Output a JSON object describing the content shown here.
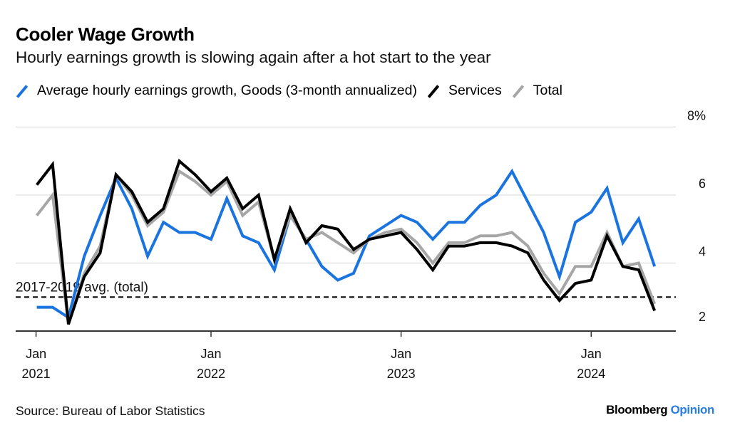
{
  "header": {
    "title": "Cooler Wage Growth",
    "subtitle": "Hourly earnings growth is slowing again after a hot start to the year"
  },
  "legend": [
    {
      "label": "Average hourly earnings growth, Goods (3-month annualized)",
      "color": "#1a74e0",
      "icon": "slash-line-icon"
    },
    {
      "label": "Services",
      "color": "#000000",
      "icon": "slash-line-icon"
    },
    {
      "label": "Total",
      "color": "#a6a6a6",
      "icon": "slash-line-icon"
    }
  ],
  "footer": {
    "source": "Source: Bureau of Labor Statistics",
    "brand_main": "Bloomberg",
    "brand_accent": "Opinion",
    "brand_accent_color": "#2a7de1"
  },
  "chart_data": {
    "type": "line",
    "title": "Cooler Wage Growth",
    "subtitle": "Hourly earnings growth is slowing again after a hot start to the year",
    "xlabel": "",
    "ylabel": "",
    "ylim": [
      2,
      8
    ],
    "y_ticks": [
      {
        "value": 8,
        "label": "8%"
      },
      {
        "value": 6,
        "label": "6"
      },
      {
        "value": 4,
        "label": "4"
      },
      {
        "value": 2,
        "label": "2"
      }
    ],
    "y_axis_side": "right",
    "grid": true,
    "legend_position": "top-left",
    "x_ticks": [
      {
        "month_index": 0,
        "line1": "Jan",
        "line2": "2021"
      },
      {
        "month_index": 12,
        "line1": "Jan",
        "line2": "2022"
      },
      {
        "month_index": 24,
        "line1": "Jan",
        "line2": "2023"
      },
      {
        "month_index": 36,
        "line1": "Jan",
        "line2": "2024"
      }
    ],
    "x_start": "Feb 2021",
    "x_end": "May 2024",
    "x_month_index_start": 1,
    "reference_line": {
      "label": "2017-2019 avg. (total)",
      "value": 3.0,
      "style": "dashed",
      "color": "#000000"
    },
    "series": [
      {
        "name": "Average hourly earnings growth, Goods (3-month annualized)",
        "color": "#1a74e0",
        "values": [
          2.7,
          2.7,
          2.4,
          4.2,
          5.4,
          6.5,
          5.6,
          4.2,
          5.2,
          4.9,
          4.9,
          4.7,
          5.9,
          4.8,
          4.6,
          3.8,
          5.4,
          4.7,
          3.9,
          3.5,
          3.7,
          4.8,
          5.1,
          5.4,
          5.2,
          4.7,
          5.2,
          5.2,
          5.7,
          6.0,
          6.7,
          5.8,
          4.9,
          3.6,
          5.2,
          5.5,
          6.2,
          4.6,
          5.3,
          3.9
        ]
      },
      {
        "name": "Total",
        "color": "#a6a6a6",
        "values": [
          5.4,
          6.0,
          2.2,
          3.7,
          4.5,
          6.6,
          6.0,
          5.1,
          5.5,
          6.7,
          6.4,
          6.0,
          6.4,
          5.4,
          5.8,
          4.1,
          5.4,
          4.7,
          4.9,
          4.6,
          4.3,
          4.7,
          4.9,
          5.0,
          4.6,
          4.0,
          4.6,
          4.6,
          4.8,
          4.8,
          4.9,
          4.5,
          3.7,
          3.1,
          3.9,
          3.9,
          4.9,
          3.9,
          4.0,
          2.8
        ]
      },
      {
        "name": "Services",
        "color": "#000000",
        "values": [
          6.3,
          6.9,
          2.2,
          3.6,
          4.3,
          6.6,
          6.1,
          5.2,
          5.6,
          7.0,
          6.6,
          6.1,
          6.5,
          5.6,
          6.0,
          4.1,
          5.6,
          4.6,
          5.1,
          5.0,
          4.4,
          4.7,
          4.8,
          4.9,
          4.4,
          3.8,
          4.5,
          4.5,
          4.6,
          4.6,
          4.5,
          4.3,
          3.5,
          2.9,
          3.4,
          3.5,
          4.8,
          3.9,
          3.8,
          2.6
        ]
      }
    ]
  }
}
